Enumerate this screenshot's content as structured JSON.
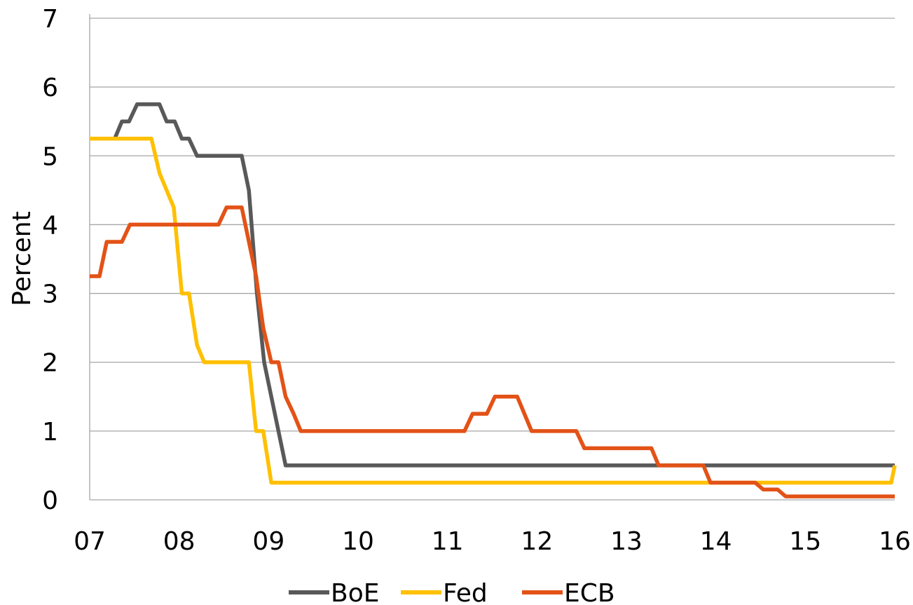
{
  "chart_data": {
    "type": "line",
    "title": "",
    "xlabel": "",
    "ylabel": "Percent",
    "xlim": [
      2007.0,
      2016.0
    ],
    "ylim": [
      0,
      7
    ],
    "yticks": [
      "0",
      "1",
      "2",
      "3",
      "4",
      "5",
      "6",
      "7"
    ],
    "xticks": [
      {
        "value": 2007,
        "label": "07"
      },
      {
        "value": 2008,
        "label": "08"
      },
      {
        "value": 2009,
        "label": "09"
      },
      {
        "value": 2010,
        "label": "10"
      },
      {
        "value": 2011,
        "label": "11"
      },
      {
        "value": 2012,
        "label": "12"
      },
      {
        "value": 2013,
        "label": "13"
      },
      {
        "value": 2014,
        "label": "14"
      },
      {
        "value": 2015,
        "label": "15"
      },
      {
        "value": 2016,
        "label": "16"
      }
    ],
    "grid": true,
    "legend_position": "bottom",
    "series": [
      {
        "name": "BoE",
        "color": "#595959",
        "points": [
          [
            2007.0,
            5.25
          ],
          [
            2007.28,
            5.25
          ],
          [
            2007.36,
            5.5
          ],
          [
            2007.44,
            5.5
          ],
          [
            2007.53,
            5.75
          ],
          [
            2007.61,
            5.75
          ],
          [
            2007.78,
            5.75
          ],
          [
            2007.86,
            5.5
          ],
          [
            2007.95,
            5.5
          ],
          [
            2008.03,
            5.25
          ],
          [
            2008.11,
            5.25
          ],
          [
            2008.2,
            5.0
          ],
          [
            2008.7,
            5.0
          ],
          [
            2008.78,
            4.5
          ],
          [
            2008.87,
            3.0
          ],
          [
            2008.95,
            2.0
          ],
          [
            2009.03,
            1.5
          ],
          [
            2009.11,
            1.0
          ],
          [
            2009.19,
            0.5
          ],
          [
            2016.0,
            0.5
          ]
        ]
      },
      {
        "name": "Fed",
        "color": "#ffc000",
        "points": [
          [
            2007.0,
            5.25
          ],
          [
            2007.69,
            5.25
          ],
          [
            2007.78,
            4.75
          ],
          [
            2007.94,
            4.25
          ],
          [
            2008.03,
            3.0
          ],
          [
            2008.11,
            3.0
          ],
          [
            2008.2,
            2.25
          ],
          [
            2008.28,
            2.0
          ],
          [
            2008.36,
            2.0
          ],
          [
            2008.78,
            2.0
          ],
          [
            2008.86,
            1.0
          ],
          [
            2008.94,
            1.0
          ],
          [
            2009.03,
            0.25
          ],
          [
            2015.96,
            0.25
          ],
          [
            2016.0,
            0.5
          ]
        ]
      },
      {
        "name": "ECB",
        "color": "#e35217",
        "points": [
          [
            2007.0,
            3.25
          ],
          [
            2007.11,
            3.25
          ],
          [
            2007.19,
            3.75
          ],
          [
            2007.36,
            3.75
          ],
          [
            2007.45,
            4.0
          ],
          [
            2008.44,
            4.0
          ],
          [
            2008.53,
            4.25
          ],
          [
            2008.7,
            4.25
          ],
          [
            2008.86,
            3.25
          ],
          [
            2008.94,
            2.5
          ],
          [
            2009.03,
            2.0
          ],
          [
            2009.11,
            2.0
          ],
          [
            2009.19,
            1.5
          ],
          [
            2009.28,
            1.25
          ],
          [
            2009.36,
            1.0
          ],
          [
            2011.19,
            1.0
          ],
          [
            2011.28,
            1.25
          ],
          [
            2011.44,
            1.25
          ],
          [
            2011.53,
            1.5
          ],
          [
            2011.78,
            1.5
          ],
          [
            2011.94,
            1.0
          ],
          [
            2012.44,
            1.0
          ],
          [
            2012.53,
            0.75
          ],
          [
            2013.28,
            0.75
          ],
          [
            2013.36,
            0.5
          ],
          [
            2013.86,
            0.5
          ],
          [
            2013.94,
            0.25
          ],
          [
            2014.44,
            0.25
          ],
          [
            2014.53,
            0.15
          ],
          [
            2014.69,
            0.15
          ],
          [
            2014.78,
            0.05
          ],
          [
            2016.0,
            0.05
          ]
        ]
      }
    ]
  }
}
